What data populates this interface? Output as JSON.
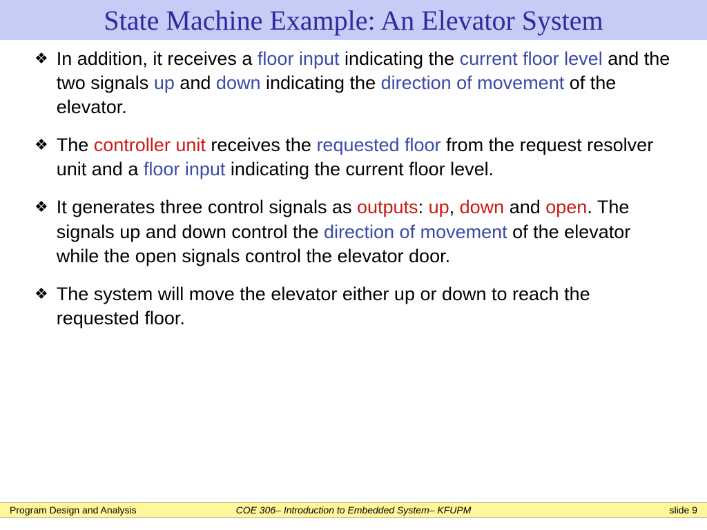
{
  "title": "State Machine Example: An Elevator System",
  "bullets": [
    {
      "runs": [
        {
          "t": "In addition, it receives a ",
          "c": "black"
        },
        {
          "t": "floor input",
          "c": "blue"
        },
        {
          "t": " indicating the ",
          "c": "black"
        },
        {
          "t": "current floor level",
          "c": "blue"
        },
        {
          "t": " and the two signals ",
          "c": "black"
        },
        {
          "t": "up",
          "c": "blue"
        },
        {
          "t": " and ",
          "c": "black"
        },
        {
          "t": "down",
          "c": "blue"
        },
        {
          "t": " indicating the ",
          "c": "black"
        },
        {
          "t": "direction of movement",
          "c": "blue"
        },
        {
          "t": " of the elevator.",
          "c": "black"
        }
      ]
    },
    {
      "runs": [
        {
          "t": "The ",
          "c": "black"
        },
        {
          "t": "controller unit",
          "c": "red"
        },
        {
          "t": " receives the ",
          "c": "black"
        },
        {
          "t": "requested floor",
          "c": "blue"
        },
        {
          "t": " from the request resolver unit and a ",
          "c": "black"
        },
        {
          "t": "floor input",
          "c": "blue"
        },
        {
          "t": " indicating the current floor level.",
          "c": "black"
        }
      ]
    },
    {
      "runs": [
        {
          "t": "It generates three control signals as ",
          "c": "black"
        },
        {
          "t": "outputs",
          "c": "red"
        },
        {
          "t": ": ",
          "c": "black"
        },
        {
          "t": "up",
          "c": "red"
        },
        {
          "t": ", ",
          "c": "black"
        },
        {
          "t": "down",
          "c": "red"
        },
        {
          "t": " and ",
          "c": "black"
        },
        {
          "t": "open",
          "c": "red"
        },
        {
          "t": ".  The signals up and down control the ",
          "c": "black"
        },
        {
          "t": "direction of movement",
          "c": "blue"
        },
        {
          "t": " of the elevator while the open signals control the elevator door.",
          "c": "black"
        }
      ]
    },
    {
      "runs": [
        {
          "t": "The system will move the elevator either up or down to reach the requested floor.",
          "c": "black"
        }
      ]
    }
  ],
  "footer": {
    "left": "Program Design and Analysis",
    "center": "COE 306– Introduction to Embedded System– KFUPM",
    "right": "slide 9"
  },
  "colors": {
    "title_bg": "#c5cdf7",
    "title_fg": "#2e2a9e",
    "blue": "#3a4aa8",
    "red": "#cc1a10",
    "footer_bg": "#fef79b"
  }
}
